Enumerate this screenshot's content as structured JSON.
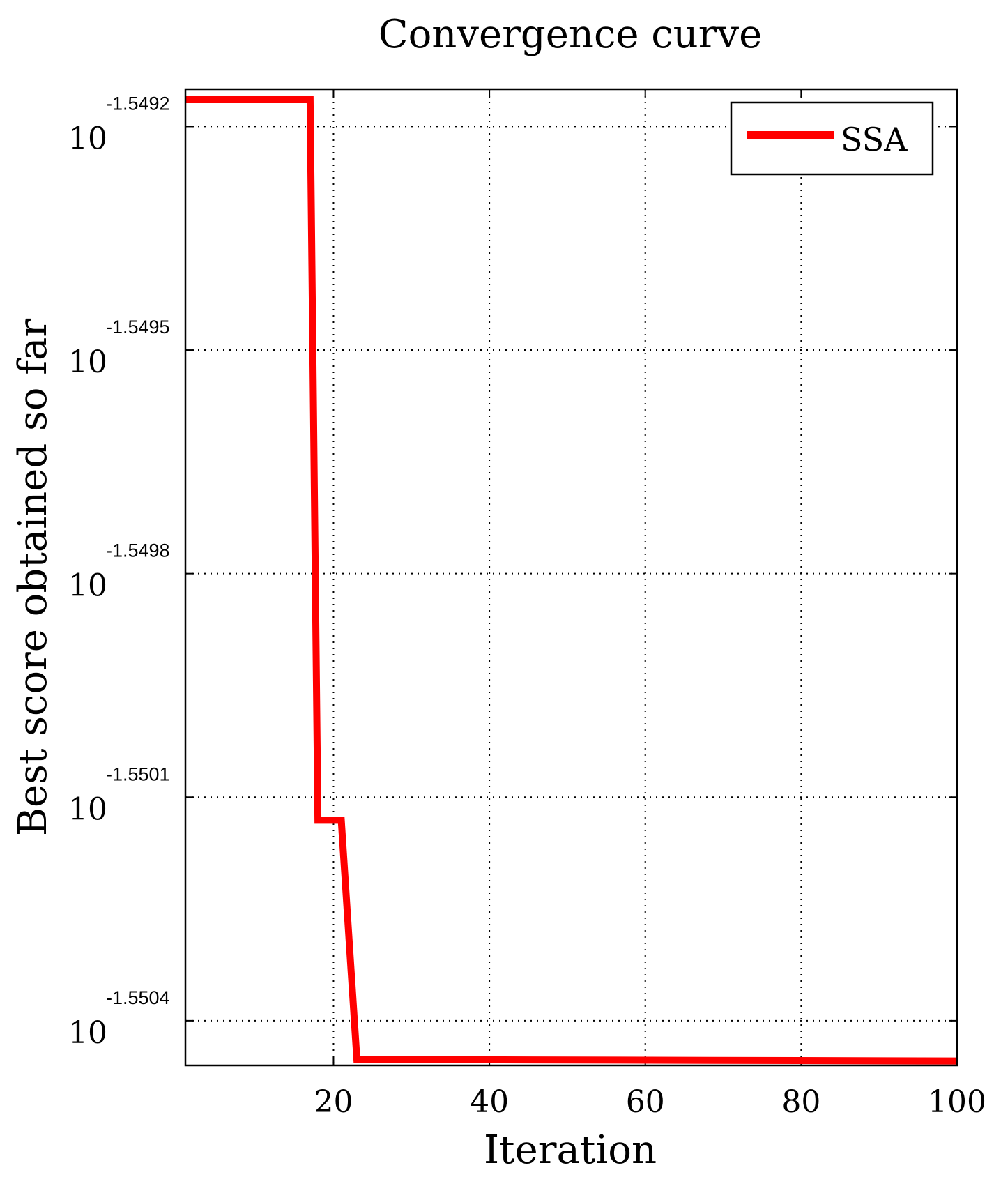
{
  "chart_data": {
    "type": "line",
    "title": "Convergence curve",
    "xlabel": "Iteration",
    "ylabel": "Best score obtained so far",
    "xlim": [
      1,
      100
    ],
    "y_scale": "log",
    "ylim_exponent": [
      -1.55046,
      -1.54915
    ],
    "x_ticks": [
      20,
      40,
      60,
      80,
      100
    ],
    "y_ticks": [
      {
        "exponent": -1.5492,
        "base": "10",
        "exp_label": "-1.5492"
      },
      {
        "exponent": -1.5495,
        "base": "10",
        "exp_label": "-1.5495"
      },
      {
        "exponent": -1.5498,
        "base": "10",
        "exp_label": "-1.5498"
      },
      {
        "exponent": -1.5501,
        "base": "10",
        "exp_label": "-1.5501"
      },
      {
        "exponent": -1.5504,
        "base": "10",
        "exp_label": "-1.5504"
      }
    ],
    "grid": true,
    "legend_position": "top-right",
    "series": [
      {
        "name": "SSA",
        "color": "#ff0000",
        "step": true,
        "points": [
          {
            "iter": 1,
            "exponent": -1.549164
          },
          {
            "iter": 17,
            "exponent": -1.549164
          },
          {
            "iter": 18,
            "exponent": -1.550131
          },
          {
            "iter": 21,
            "exponent": -1.550131
          },
          {
            "iter": 23,
            "exponent": -1.550452
          },
          {
            "iter": 100,
            "exponent": -1.550454
          }
        ]
      }
    ]
  }
}
